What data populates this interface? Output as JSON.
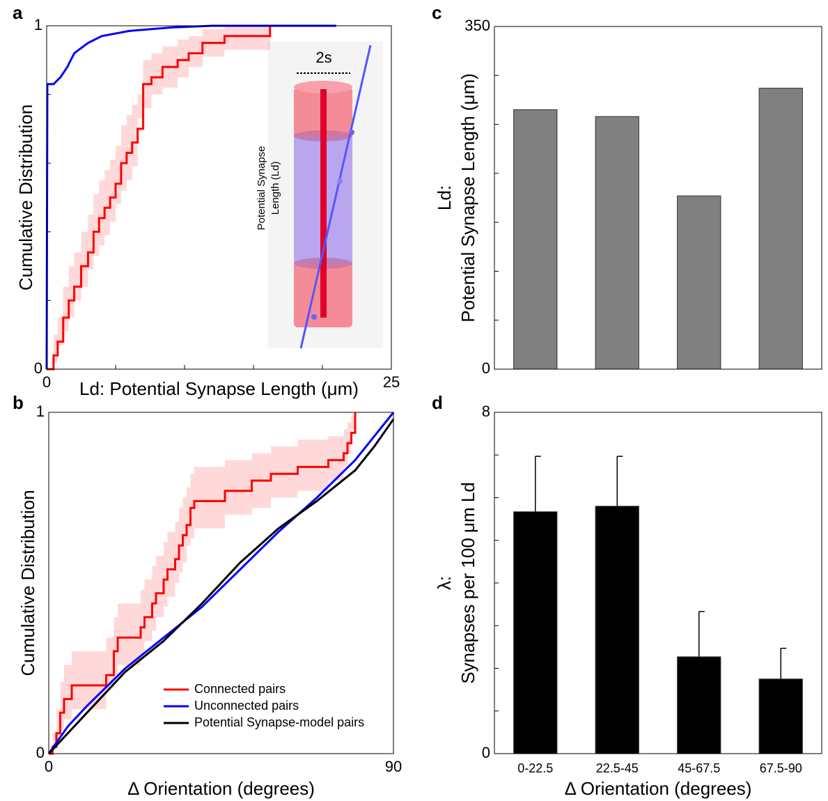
{
  "chart_data": [
    {
      "type": "line",
      "panel": "a",
      "xlabel": "Ld: Potential Synapse Length (μm)",
      "ylabel": "Cumulative Distribution",
      "xlim": [
        0,
        25
      ],
      "ylim": [
        0,
        1
      ],
      "xticks": [
        0,
        25
      ],
      "yticks": [
        0,
        1
      ],
      "xminorticks": [
        5,
        10,
        15,
        20
      ],
      "yminorticks": [
        0.2,
        0.4,
        0.6,
        0.8
      ],
      "annotations": [
        "2s",
        "Potential Synapse",
        "Length (Ld)"
      ],
      "series": [
        {
          "color": "#ff0000",
          "step": true,
          "x": [
            0,
            0.5,
            0.8,
            1.2,
            1.6,
            2.0,
            2.5,
            3.0,
            3.4,
            3.8,
            4.2,
            4.6,
            5.0,
            5.4,
            5.8,
            6.2,
            6.6,
            7.0,
            7.6,
            8.4,
            9.5,
            10.3,
            11.3,
            12.9,
            16.2
          ],
          "values": [
            0,
            0.04,
            0.08,
            0.15,
            0.2,
            0.24,
            0.3,
            0.34,
            0.4,
            0.44,
            0.47,
            0.5,
            0.54,
            0.6,
            0.63,
            0.66,
            0.7,
            0.83,
            0.85,
            0.88,
            0.9,
            0.92,
            0.95,
            0.97,
            1.0
          ],
          "lower": [
            0,
            0,
            0.02,
            0.07,
            0.11,
            0.15,
            0.2,
            0.24,
            0.29,
            0.33,
            0.36,
            0.39,
            0.43,
            0.48,
            0.52,
            0.55,
            0.59,
            0.73,
            0.76,
            0.8,
            0.82,
            0.85,
            0.88,
            0.91,
            0.93
          ],
          "upper": [
            0,
            0.1,
            0.15,
            0.24,
            0.3,
            0.34,
            0.4,
            0.45,
            0.51,
            0.55,
            0.58,
            0.61,
            0.65,
            0.71,
            0.74,
            0.77,
            0.8,
            0.9,
            0.92,
            0.94,
            0.96,
            0.97,
            0.99,
            1.0,
            1.0
          ]
        },
        {
          "color": "#0000ff",
          "step": false,
          "x": [
            0,
            0.05,
            0.5,
            1.0,
            1.5,
            2.0,
            3.0,
            4.0,
            6.0,
            9.0,
            12.0,
            21.0
          ],
          "values": [
            0,
            0.83,
            0.83,
            0.85,
            0.88,
            0.92,
            0.95,
            0.97,
            0.985,
            0.995,
            1.0,
            1.0
          ]
        }
      ]
    },
    {
      "type": "line",
      "panel": "b",
      "xlabel": "Δ Orientation (degrees)",
      "ylabel": "Cumulative Distribution",
      "xlim": [
        0,
        90
      ],
      "ylim": [
        0,
        1
      ],
      "xticks": [
        0,
        90
      ],
      "yticks": [
        0,
        1
      ],
      "legend": "lower right",
      "series": [
        {
          "name": "Connected pairs",
          "color": "#ff0000",
          "step": true,
          "x": [
            0,
            1,
            2,
            3,
            4,
            6,
            15,
            17,
            18,
            24,
            25,
            27,
            28,
            30,
            31,
            33,
            34,
            35,
            36,
            37,
            38,
            46,
            53,
            58,
            65,
            73,
            77,
            78,
            79,
            80
          ],
          "values": [
            0,
            0.02,
            0.06,
            0.12,
            0.16,
            0.2,
            0.23,
            0.3,
            0.34,
            0.37,
            0.4,
            0.44,
            0.47,
            0.51,
            0.54,
            0.57,
            0.61,
            0.64,
            0.67,
            0.72,
            0.74,
            0.77,
            0.8,
            0.82,
            0.84,
            0.86,
            0.88,
            0.91,
            0.94,
            1.0
          ],
          "lower": [
            0,
            0,
            0.01,
            0.04,
            0.07,
            0.1,
            0.13,
            0.19,
            0.23,
            0.26,
            0.29,
            0.33,
            0.36,
            0.4,
            0.43,
            0.46,
            0.5,
            0.53,
            0.56,
            0.61,
            0.63,
            0.66,
            0.7,
            0.72,
            0.75,
            0.77,
            0.8,
            0.84,
            0.88,
            0.95
          ],
          "upper": [
            0,
            0.06,
            0.13,
            0.21,
            0.26,
            0.3,
            0.34,
            0.4,
            0.44,
            0.48,
            0.51,
            0.55,
            0.58,
            0.62,
            0.65,
            0.68,
            0.72,
            0.75,
            0.78,
            0.82,
            0.84,
            0.86,
            0.88,
            0.9,
            0.92,
            0.93,
            0.95,
            0.97,
            0.99,
            1.0
          ]
        },
        {
          "name": "Unconnected pairs",
          "color": "#0000ff",
          "step": false,
          "x": [
            0,
            5,
            10,
            20,
            30,
            40,
            50,
            60,
            70,
            80,
            90
          ],
          "values": [
            0,
            0.08,
            0.14,
            0.25,
            0.34,
            0.43,
            0.54,
            0.65,
            0.75,
            0.86,
            1.0
          ]
        },
        {
          "name": "Potential Synapse-model pairs",
          "color": "#000000",
          "step": false,
          "x": [
            0,
            5,
            10,
            20,
            30,
            40,
            50,
            60,
            70,
            80,
            85,
            90
          ],
          "values": [
            0,
            0.06,
            0.12,
            0.24,
            0.33,
            0.44,
            0.56,
            0.66,
            0.74,
            0.83,
            0.9,
            0.98
          ]
        }
      ]
    },
    {
      "type": "bar",
      "panel": "c",
      "ylabel": [
        "Ld:",
        "Potential Synapse Length (μm)"
      ],
      "color": "#808080",
      "values": [
        265,
        258,
        177,
        287
      ],
      "ylim": [
        0,
        350
      ],
      "yticks": [
        0,
        350
      ],
      "yminorticks": [
        50,
        100,
        150,
        200,
        250,
        300
      ]
    },
    {
      "type": "bar",
      "panel": "d",
      "ylabel": [
        "λ:",
        "Synapses per 100 μm Ld"
      ],
      "xlabel": "Δ Orientation (degrees)",
      "color": "#000000",
      "categories": [
        "0-22.5",
        "22.5-45",
        "45-67.5",
        "67.5-90"
      ],
      "values": [
        5.67,
        5.8,
        2.27,
        1.75
      ],
      "errors": [
        1.3,
        1.17,
        1.06,
        0.72
      ],
      "ylim": [
        0,
        8
      ],
      "yticks": [
        0,
        8
      ],
      "yminorticks": [
        1,
        2,
        3,
        4,
        5,
        6,
        7
      ]
    }
  ]
}
